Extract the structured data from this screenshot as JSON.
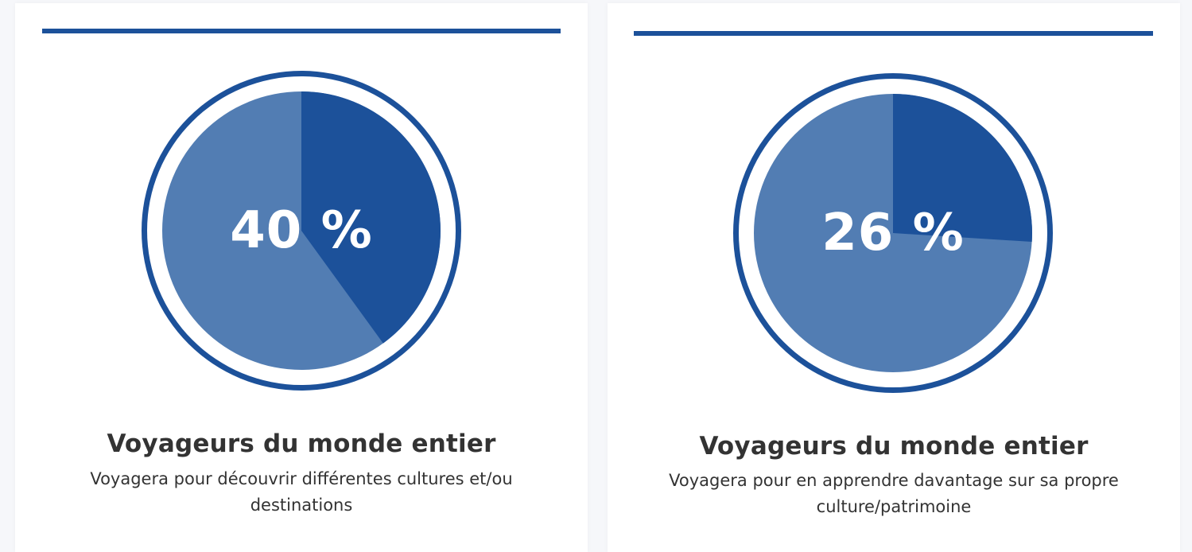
{
  "colors": {
    "accent": "#1c519a",
    "slice_light": "#527db3",
    "ring_gap": "#ffffff",
    "pct_text": "#ffffff"
  },
  "chart_data": [
    {
      "type": "pie",
      "value_percent": 40,
      "label": "40 %",
      "title": "Voyageurs du monde entier",
      "description": "Voyagera pour découvrir différentes cultures et/ou destinations"
    },
    {
      "type": "pie",
      "value_percent": 26,
      "label": "26 %",
      "title": "Voyageurs du monde entier",
      "description": "Voyagera pour en apprendre davantage sur sa propre culture/patrimoine"
    }
  ]
}
